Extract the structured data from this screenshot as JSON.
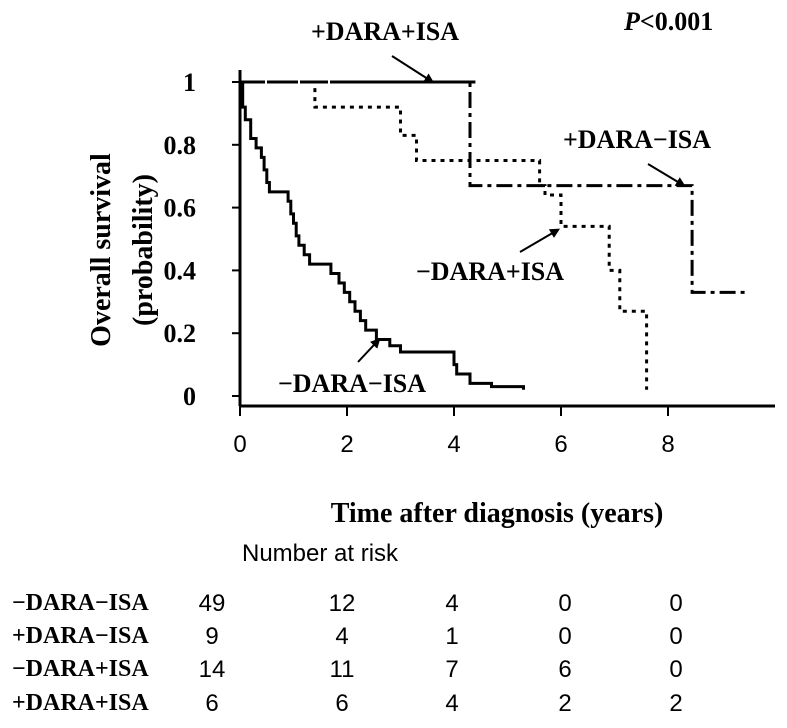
{
  "chart_data": {
    "type": "line",
    "subtype": "kaplan-meier",
    "ylabel_line1": "Overall survival",
    "ylabel_line2": "(probability)",
    "xlabel": "Time after diagnosis (years)",
    "p_value_italic": "P",
    "p_value_rest": "<0.001",
    "xlim": [
      0,
      10
    ],
    "ylim": [
      0,
      1
    ],
    "x_ticks": [
      0,
      2,
      4,
      6,
      8
    ],
    "x_tick_labels": [
      "0",
      "2",
      "4",
      "6",
      "8"
    ],
    "y_ticks": [
      0,
      0.2,
      0.4,
      0.6,
      0.8,
      1
    ],
    "y_tick_labels": [
      "0",
      "0.2",
      "0.4",
      "0.6",
      "0.8",
      "1"
    ],
    "series": [
      {
        "name": "−DARA−ISA",
        "style": "solid",
        "label": "−DARA−ISA",
        "points": [
          [
            0,
            1
          ],
          [
            0.05,
            1
          ],
          [
            0.05,
            0.92
          ],
          [
            0.1,
            0.92
          ],
          [
            0.1,
            0.88
          ],
          [
            0.2,
            0.88
          ],
          [
            0.2,
            0.82
          ],
          [
            0.3,
            0.82
          ],
          [
            0.3,
            0.79
          ],
          [
            0.4,
            0.79
          ],
          [
            0.4,
            0.76
          ],
          [
            0.45,
            0.76
          ],
          [
            0.45,
            0.72
          ],
          [
            0.5,
            0.72
          ],
          [
            0.5,
            0.68
          ],
          [
            0.55,
            0.68
          ],
          [
            0.55,
            0.65
          ],
          [
            0.9,
            0.65
          ],
          [
            0.9,
            0.62
          ],
          [
            0.95,
            0.62
          ],
          [
            0.95,
            0.58
          ],
          [
            1.0,
            0.58
          ],
          [
            1.0,
            0.55
          ],
          [
            1.05,
            0.55
          ],
          [
            1.05,
            0.51
          ],
          [
            1.1,
            0.51
          ],
          [
            1.1,
            0.48
          ],
          [
            1.2,
            0.48
          ],
          [
            1.2,
            0.45
          ],
          [
            1.3,
            0.45
          ],
          [
            1.3,
            0.42
          ],
          [
            1.7,
            0.42
          ],
          [
            1.7,
            0.39
          ],
          [
            1.85,
            0.39
          ],
          [
            1.85,
            0.36
          ],
          [
            1.95,
            0.36
          ],
          [
            1.95,
            0.33
          ],
          [
            2.05,
            0.33
          ],
          [
            2.05,
            0.3
          ],
          [
            2.15,
            0.3
          ],
          [
            2.15,
            0.27
          ],
          [
            2.25,
            0.27
          ],
          [
            2.25,
            0.24
          ],
          [
            2.35,
            0.24
          ],
          [
            2.35,
            0.21
          ],
          [
            2.55,
            0.21
          ],
          [
            2.55,
            0.18
          ],
          [
            2.8,
            0.18
          ],
          [
            2.8,
            0.16
          ],
          [
            3.0,
            0.16
          ],
          [
            3.0,
            0.14
          ],
          [
            4.0,
            0.14
          ],
          [
            4.0,
            0.1
          ],
          [
            4.05,
            0.1
          ],
          [
            4.05,
            0.07
          ],
          [
            4.3,
            0.07
          ],
          [
            4.3,
            0.04
          ],
          [
            4.7,
            0.04
          ],
          [
            4.7,
            0.03
          ],
          [
            5.3,
            0.03
          ],
          [
            5.3,
            0.02
          ]
        ],
        "arrow_to": [
          2.6,
          0.18
        ]
      },
      {
        "name": "+DARA−ISA",
        "style": "dashdot",
        "label": "+DARA−ISA",
        "points": [
          [
            0,
            1
          ],
          [
            4.3,
            1
          ],
          [
            4.3,
            0.67
          ],
          [
            8.45,
            0.67
          ],
          [
            8.45,
            0.33
          ],
          [
            9.5,
            0.33
          ]
        ],
        "arrow_to": [
          8.3,
          0.67
        ]
      },
      {
        "name": "−DARA+ISA",
        "style": "dotted",
        "label": "−DARA+ISA",
        "points": [
          [
            0,
            1
          ],
          [
            1.4,
            1
          ],
          [
            1.4,
            0.92
          ],
          [
            3.0,
            0.92
          ],
          [
            3.0,
            0.83
          ],
          [
            3.3,
            0.83
          ],
          [
            3.3,
            0.75
          ],
          [
            5.6,
            0.75
          ],
          [
            5.6,
            0.67
          ],
          [
            5.7,
            0.67
          ],
          [
            5.7,
            0.64
          ],
          [
            6.0,
            0.64
          ],
          [
            6.0,
            0.54
          ],
          [
            6.9,
            0.54
          ],
          [
            6.9,
            0.4
          ],
          [
            7.1,
            0.4
          ],
          [
            7.1,
            0.27
          ],
          [
            7.6,
            0.27
          ],
          [
            7.6,
            0.02
          ]
        ],
        "arrow_to": [
          5.95,
          0.53
        ]
      },
      {
        "name": "+DARA+ISA",
        "style": "longdash",
        "label": "+DARA+ISA",
        "points": [
          [
            0,
            1
          ],
          [
            4.4,
            1
          ]
        ],
        "arrow_to": [
          3.6,
          1.0
        ]
      }
    ],
    "risk_table": {
      "title": "Number at risk",
      "time_points": [
        0,
        2,
        4,
        6,
        8
      ],
      "rows": [
        {
          "label": "−DARA−ISA",
          "values": [
            "49",
            "12",
            "4",
            "0",
            "0"
          ]
        },
        {
          "label": "+DARA−ISA",
          "values": [
            "9",
            "4",
            "1",
            "0",
            "0"
          ]
        },
        {
          "label": "−DARA+ISA",
          "values": [
            "14",
            "11",
            "7",
            "6",
            "0"
          ]
        },
        {
          "label": "+DARA+ISA",
          "values": [
            "6",
            "6",
            "4",
            "2",
            "2"
          ]
        }
      ]
    }
  }
}
